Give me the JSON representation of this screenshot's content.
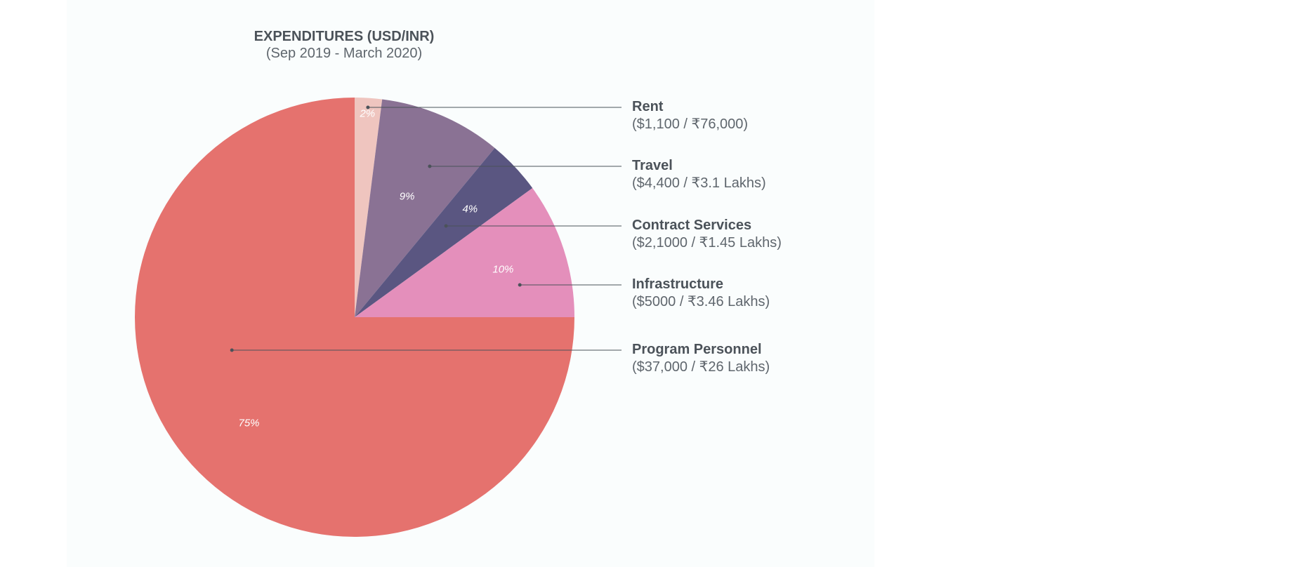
{
  "chart_data": {
    "type": "pie",
    "title": "EXPENDITURES (USD/INR)",
    "subtitle": "(Sep 2019 - March 2020)",
    "slices": [
      {
        "name": "Rent",
        "value": 2,
        "label": "2%",
        "amount": "($1,100 / ₹76,000)",
        "color": "#efc5bf"
      },
      {
        "name": "Travel",
        "value": 9,
        "label": "9%",
        "amount": "($4,400 / ₹3.1 Lakhs)",
        "color": "#8a7294"
      },
      {
        "name": "Contract Services",
        "value": 4,
        "label": "4%",
        "amount": "($2,1000 / ₹1.45 Lakhs)",
        "color": "#5a5681"
      },
      {
        "name": "Infrastructure",
        "value": 10,
        "label": "10%",
        "amount": "($5000 / ₹3.46 Lakhs)",
        "color": "#e48fbb"
      },
      {
        "name": "Program Personnel",
        "value": 75,
        "label": "75%",
        "amount": "($37,000 / ₹26 Lakhs)",
        "color": "#e5726e"
      }
    ],
    "start_angle": "12 o'clock",
    "direction": "clockwise",
    "legend": "right"
  },
  "colors": {
    "panel": "#fafdfd",
    "text": "#4b5259",
    "leader": "#4b5259"
  }
}
